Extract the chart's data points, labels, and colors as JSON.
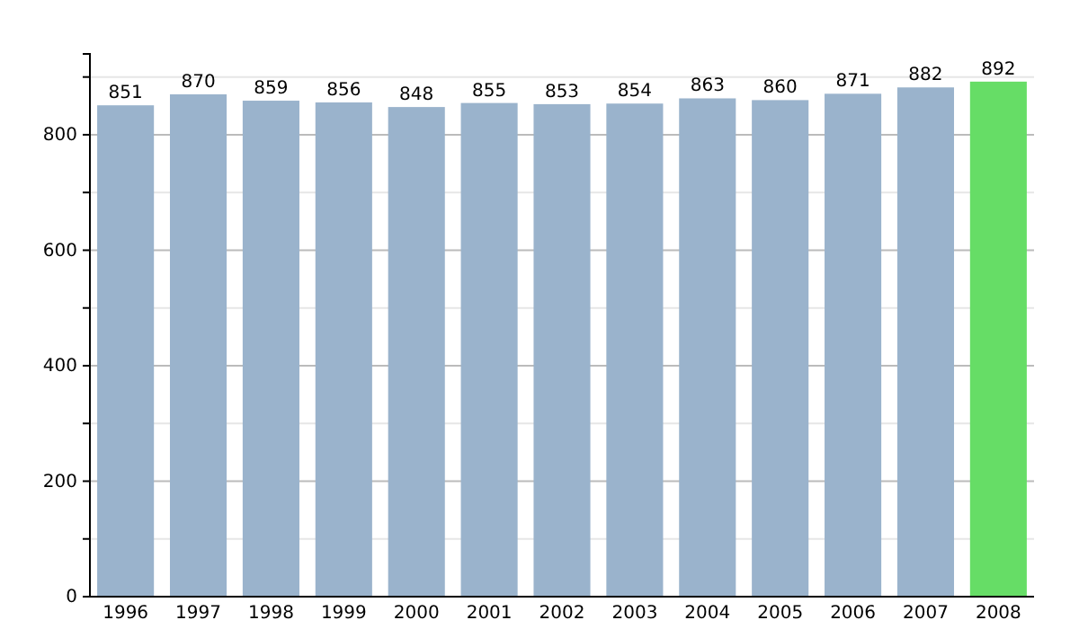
{
  "chart_data": {
    "type": "bar",
    "categories": [
      "1996",
      "1997",
      "1998",
      "1999",
      "2000",
      "2001",
      "2002",
      "2003",
      "2004",
      "2005",
      "2006",
      "2007",
      "2008"
    ],
    "values": [
      851,
      870,
      859,
      856,
      848,
      855,
      853,
      854,
      863,
      860,
      871,
      882,
      892
    ],
    "colors": [
      "#9ab3cc",
      "#9ab3cc",
      "#9ab3cc",
      "#9ab3cc",
      "#9ab3cc",
      "#9ab3cc",
      "#9ab3cc",
      "#9ab3cc",
      "#9ab3cc",
      "#9ab3cc",
      "#9ab3cc",
      "#9ab3cc",
      "#66dd66"
    ],
    "ylim": [
      0,
      940
    ],
    "yticks": [
      0,
      {
        "value": 100,
        "label": null
      },
      200,
      {
        "value": 300,
        "label": null
      },
      400,
      {
        "value": 500,
        "label": null
      },
      600,
      {
        "value": 700,
        "label": null
      },
      800,
      {
        "value": 900,
        "label": null
      }
    ],
    "grid": true,
    "data_labels": true
  }
}
